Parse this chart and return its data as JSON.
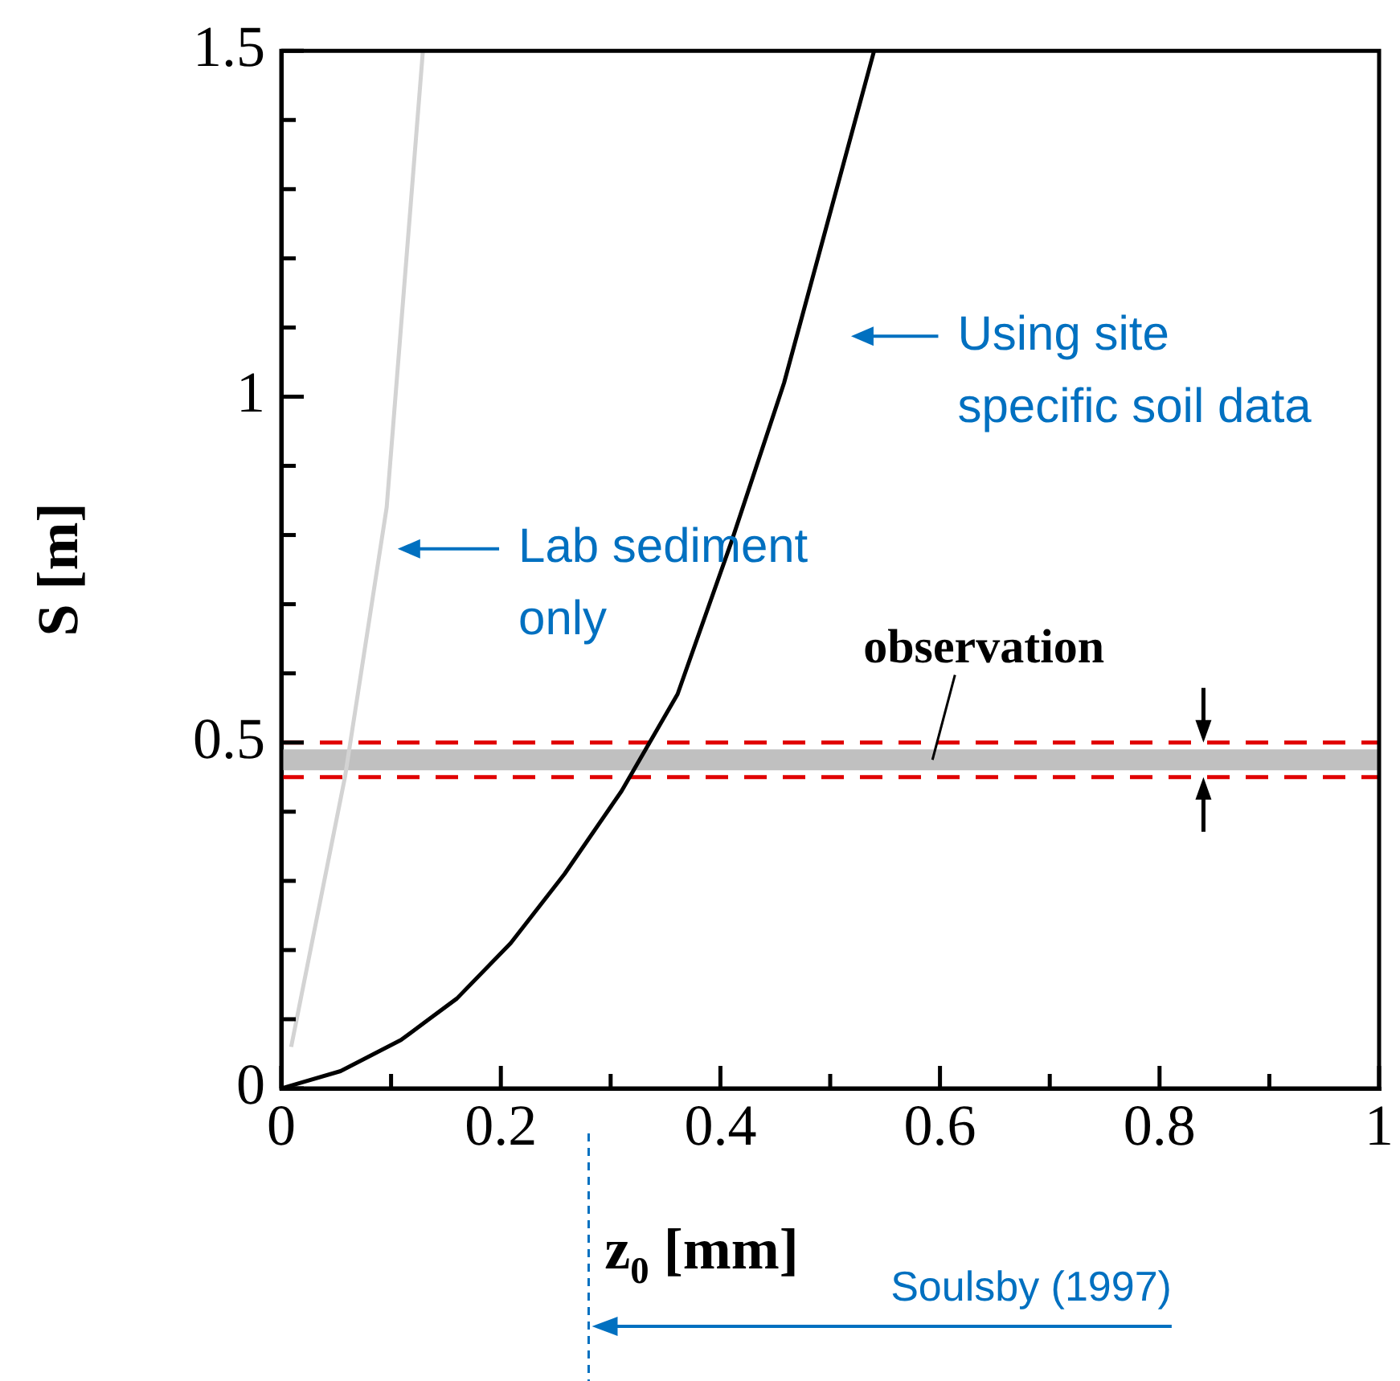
{
  "chart_data": {
    "type": "line",
    "xlabel": "z$_{0}$ [mm]",
    "ylabel": "S [m]",
    "series": [
      {
        "color": "#d3d3d3",
        "x": [
          0.009,
          0.058,
          0.096,
          0.129
        ],
        "values": [
          0.06,
          0.45,
          0.84,
          1.5
        ]
      },
      {
        "color": "#000000",
        "x": [
          0,
          0.054,
          0.109,
          0.16,
          0.209,
          0.258,
          0.31,
          0.361,
          0.41,
          0.458,
          0.54
        ],
        "values": [
          0,
          0.025,
          0.07,
          0.13,
          0.21,
          0.31,
          0.43,
          0.57,
          0.79,
          1.02,
          1.5
        ]
      }
    ],
    "xlim": [
      0,
      1
    ],
    "ylim": [
      0,
      1.5
    ],
    "xticks": [
      0,
      {
        "value": 0.1,
        "label": null
      },
      0.2,
      {
        "value": 0.3,
        "label": null
      },
      0.4,
      {
        "value": 0.5,
        "label": null
      },
      0.6,
      {
        "value": 0.7,
        "label": null
      },
      0.8,
      {
        "value": 0.9,
        "label": null
      },
      1
    ],
    "yticks": [
      0,
      {
        "value": 0.1,
        "label": null
      },
      {
        "value": 0.2,
        "label": null
      },
      {
        "value": 0.3,
        "label": null
      },
      {
        "value": 0.4,
        "label": null
      },
      0.5,
      {
        "value": 0.6,
        "label": null
      },
      {
        "value": 0.7,
        "label": null
      },
      {
        "value": 0.8,
        "label": null
      },
      {
        "value": 0.9,
        "label": null
      },
      1,
      {
        "value": 1.1,
        "label": null
      },
      {
        "value": 1.2,
        "label": null
      },
      {
        "value": 1.3,
        "label": null
      },
      {
        "value": 1.4,
        "label": null
      },
      1.5
    ],
    "grid": false,
    "legend": false,
    "marker": "none",
    "line_style": "solid",
    "bands": [
      {
        "axis": "y",
        "from": 0.46,
        "to": 0.49,
        "label": "observation",
        "color": "#c0c0c0"
      }
    ],
    "ref_lines": [
      {
        "axis": "y",
        "value": 0.5,
        "color": "#e00000",
        "line_style": "dashed"
      },
      {
        "axis": "y",
        "value": 0.45,
        "color": "#e00000",
        "line_style": "dashed"
      }
    ],
    "annotations": [
      "Using site specific soil data",
      "Lab sediment only",
      "Soulsby (1997)"
    ]
  }
}
